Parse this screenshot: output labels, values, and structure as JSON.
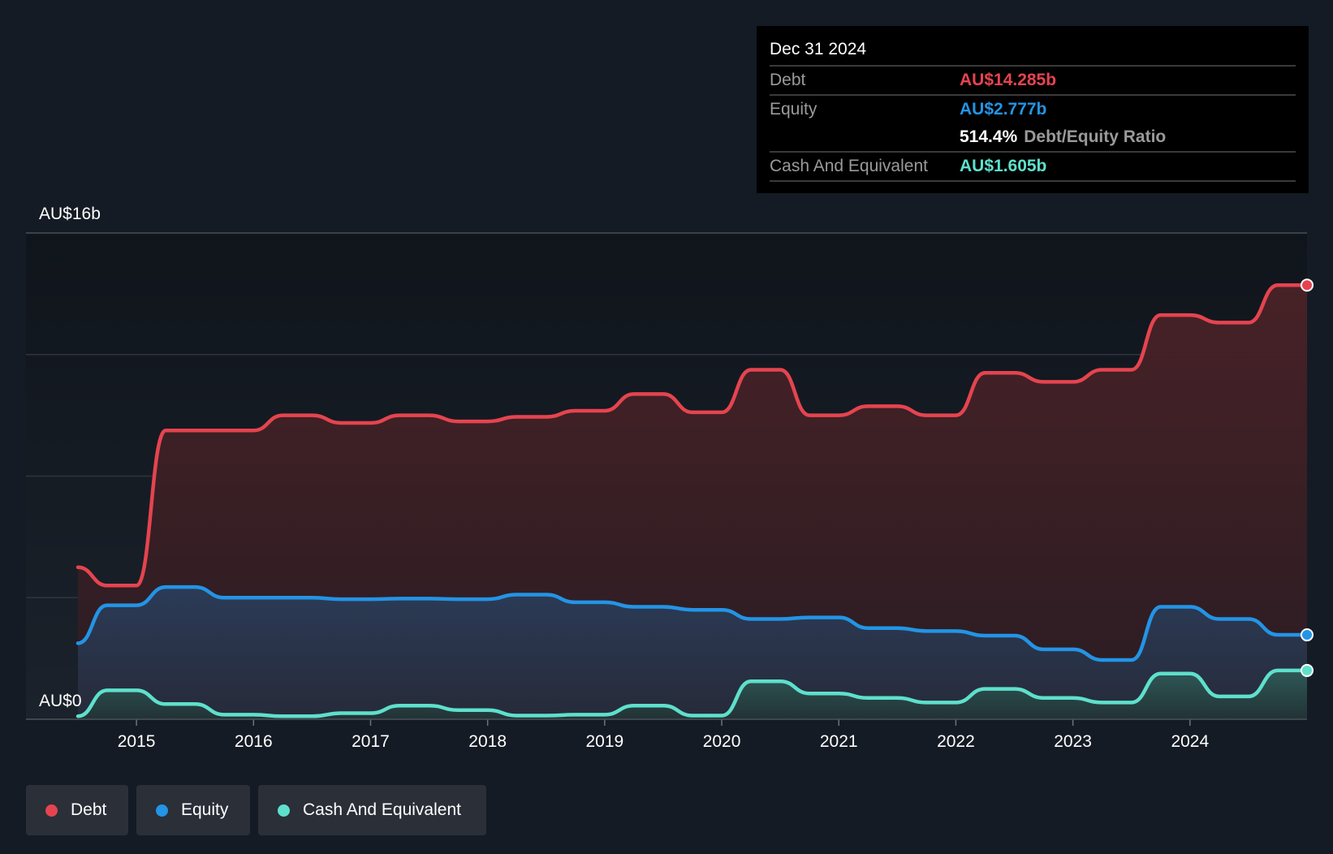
{
  "tooltip": {
    "date": "Dec 31 2024",
    "debt_label": "Debt",
    "debt_value": "AU$14.285b",
    "equity_label": "Equity",
    "equity_value": "AU$2.777b",
    "ratio_value": "514.4%",
    "ratio_label": "Debt/Equity Ratio",
    "cash_label": "Cash And Equivalent",
    "cash_value": "AU$1.605b"
  },
  "legend": [
    {
      "label": "Debt",
      "color": "#e5444f"
    },
    {
      "label": "Equity",
      "color": "#2394e6"
    },
    {
      "label": "Cash And Equivalent",
      "color": "#5ee0cc"
    }
  ],
  "chart_data": {
    "type": "area",
    "y_labels": {
      "top": "AU$16b",
      "bottom": "AU$0"
    },
    "ylim": [
      0,
      16
    ],
    "x_ticks": [
      "2015",
      "2016",
      "2017",
      "2018",
      "2019",
      "2020",
      "2021",
      "2022",
      "2023",
      "2024"
    ],
    "grid": true,
    "legend_position": "bottom-left",
    "x": [
      2014.5,
      2014.75,
      2015.0,
      2015.25,
      2015.5,
      2015.75,
      2016.0,
      2016.25,
      2016.5,
      2016.75,
      2017.0,
      2017.25,
      2017.5,
      2017.75,
      2018.0,
      2018.25,
      2018.5,
      2018.75,
      2019.0,
      2019.25,
      2019.5,
      2019.75,
      2020.0,
      2020.25,
      2020.5,
      2020.75,
      2021.0,
      2021.25,
      2021.5,
      2021.75,
      2022.0,
      2022.25,
      2022.5,
      2022.75,
      2023.0,
      2023.25,
      2023.5,
      2023.75,
      2024.0,
      2024.25,
      2024.5,
      2024.75,
      2025.0
    ],
    "series": [
      {
        "name": "Debt",
        "color": "#e5444f",
        "values": [
          5.0,
          4.4,
          4.4,
          9.5,
          9.5,
          9.5,
          9.5,
          10.0,
          10.0,
          9.75,
          9.75,
          10.0,
          10.0,
          9.8,
          9.8,
          9.95,
          9.95,
          10.15,
          10.15,
          10.7,
          10.7,
          10.1,
          10.1,
          11.5,
          11.5,
          10.0,
          10.0,
          10.3,
          10.3,
          10.0,
          10.0,
          11.4,
          11.4,
          11.1,
          11.1,
          11.5,
          11.5,
          13.3,
          13.3,
          13.05,
          13.05,
          14.285,
          14.285
        ]
      },
      {
        "name": "Equity",
        "color": "#2394e6",
        "values": [
          2.5,
          3.75,
          3.75,
          4.35,
          4.35,
          4.0,
          4.0,
          4.0,
          4.0,
          3.95,
          3.95,
          3.97,
          3.97,
          3.95,
          3.95,
          4.1,
          4.1,
          3.85,
          3.85,
          3.7,
          3.7,
          3.6,
          3.6,
          3.3,
          3.3,
          3.35,
          3.35,
          3.0,
          3.0,
          2.9,
          2.9,
          2.75,
          2.75,
          2.3,
          2.3,
          1.95,
          1.95,
          3.7,
          3.7,
          3.3,
          3.3,
          2.777,
          2.777
        ]
      },
      {
        "name": "Cash And Equivalent",
        "color": "#5ee0cc",
        "values": [
          0.1,
          0.95,
          0.95,
          0.5,
          0.5,
          0.15,
          0.15,
          0.1,
          0.1,
          0.2,
          0.2,
          0.45,
          0.45,
          0.3,
          0.3,
          0.12,
          0.12,
          0.15,
          0.15,
          0.45,
          0.45,
          0.12,
          0.12,
          1.25,
          1.25,
          0.85,
          0.85,
          0.7,
          0.7,
          0.55,
          0.55,
          1.0,
          1.0,
          0.7,
          0.7,
          0.55,
          0.55,
          1.5,
          1.5,
          0.75,
          0.75,
          1.605,
          1.605
        ]
      }
    ]
  }
}
